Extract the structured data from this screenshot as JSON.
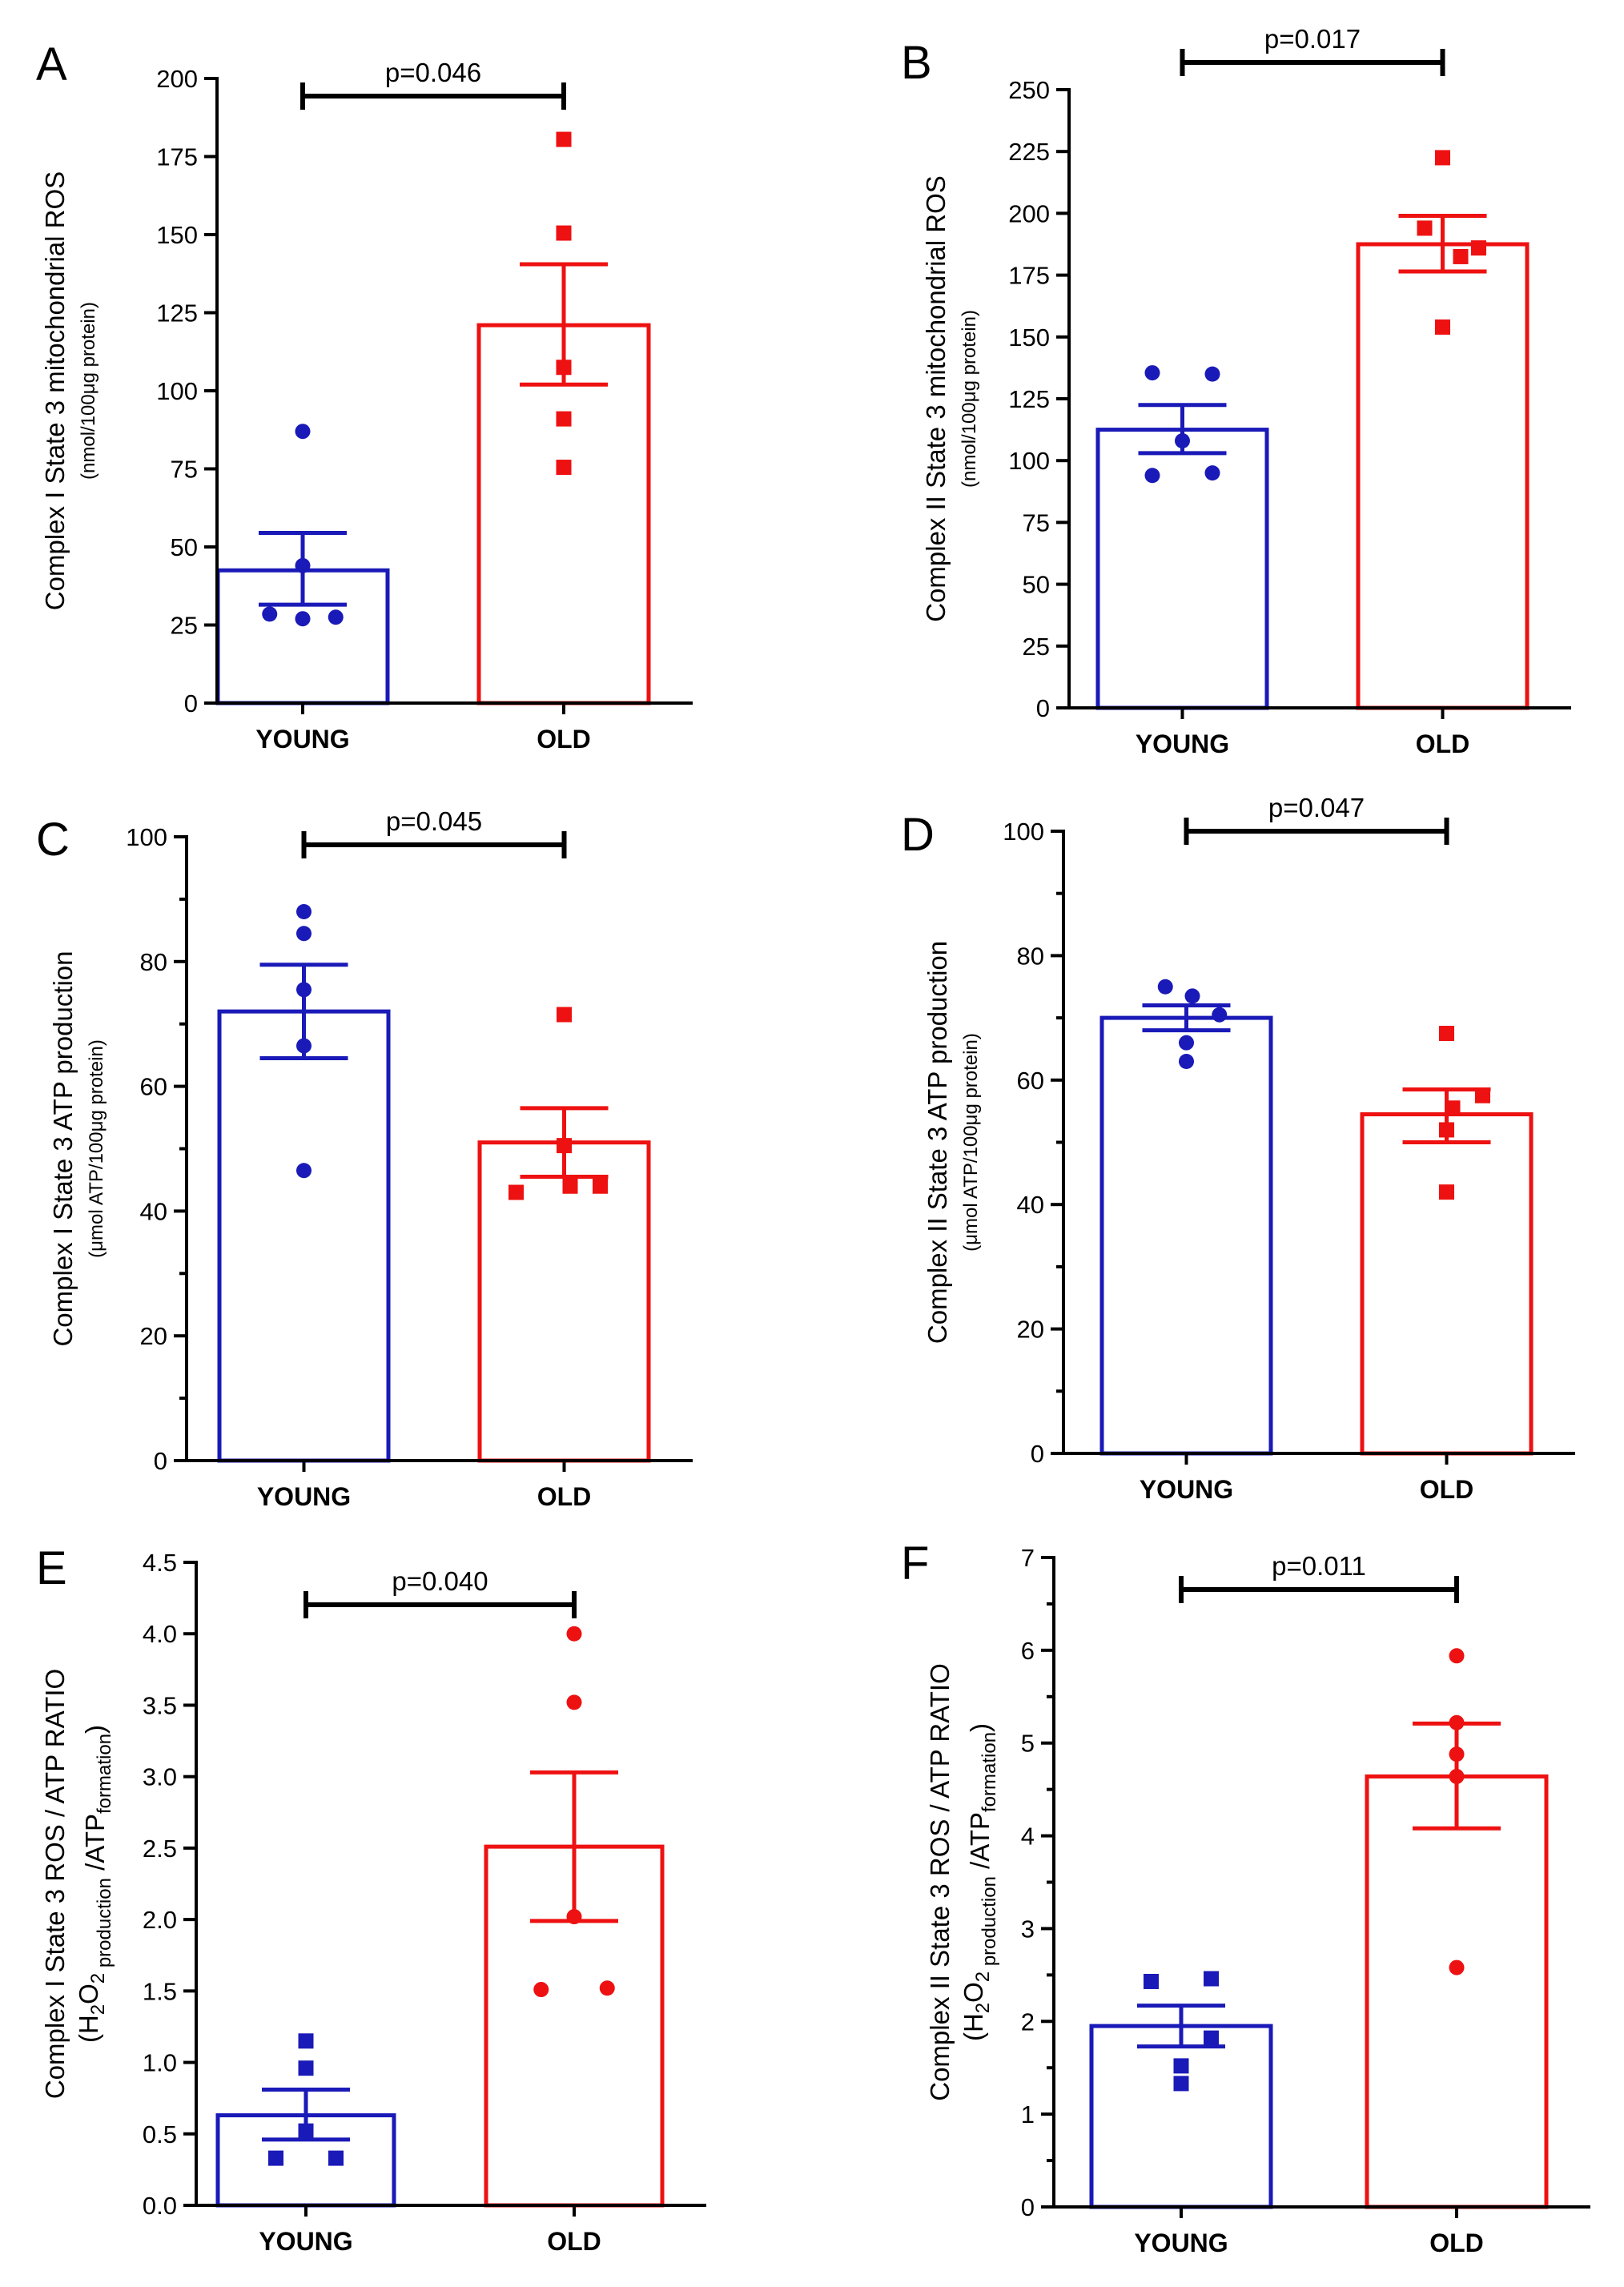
{
  "colors": {
    "young": "#1a1ab8",
    "old": "#ee1111",
    "axis": "#000000"
  },
  "chart_data": [
    {
      "panel": "A",
      "type": "bar",
      "categories": [
        "YOUNG",
        "OLD"
      ],
      "ylabel_main": "Complex I State 3 mitochondrial ROS",
      "ylabel_sub": "(nmol/100μg protein)",
      "ylim": [
        0,
        200
      ],
      "ticks": [
        0,
        25,
        50,
        75,
        100,
        125,
        150,
        175,
        200
      ],
      "minor_ticks": 0,
      "tick_decimals": 0,
      "pvalue": "p=0.046",
      "groups": [
        {
          "name": "YOUNG",
          "mean": 42.5,
          "sem_low": 31.5,
          "sem_high": 54.5,
          "marker": "circle",
          "points": [
            87,
            44,
            27,
            28.5,
            27.5
          ]
        },
        {
          "name": "OLD",
          "mean": 121,
          "sem_low": 102,
          "sem_high": 140.5,
          "marker": "square",
          "points": [
            180.5,
            150.5,
            107.5,
            91,
            75.5
          ]
        }
      ]
    },
    {
      "panel": "B",
      "type": "bar",
      "categories": [
        "YOUNG",
        "OLD"
      ],
      "ylabel_main": "Complex II State 3 mitochondrial ROS",
      "ylabel_sub": "(nmol/100μg protein)",
      "ylim": [
        0,
        250
      ],
      "ticks": [
        0,
        25,
        50,
        75,
        100,
        125,
        150,
        175,
        200,
        225,
        250
      ],
      "minor_ticks": 0,
      "tick_decimals": 0,
      "pvalue": "p=0.017",
      "groups": [
        {
          "name": "YOUNG",
          "mean": 112.5,
          "sem_low": 103,
          "sem_high": 122.5,
          "marker": "circle",
          "points": [
            135.5,
            135,
            108,
            94,
            95
          ]
        },
        {
          "name": "OLD",
          "mean": 187.5,
          "sem_low": 176.5,
          "sem_high": 199,
          "marker": "square",
          "points": [
            222.5,
            194,
            182.5,
            186,
            154
          ]
        }
      ]
    },
    {
      "panel": "C",
      "type": "bar",
      "categories": [
        "YOUNG",
        "OLD"
      ],
      "ylabel_main": "Complex I State 3 ATP production",
      "ylabel_sub": "(μmol ATP/100μg protein)",
      "ylim": [
        0,
        100
      ],
      "ticks": [
        0,
        20,
        40,
        60,
        80,
        100
      ],
      "minor_ticks": 1,
      "tick_decimals": 0,
      "pvalue": "p=0.045",
      "groups": [
        {
          "name": "YOUNG",
          "mean": 72,
          "sem_low": 64.5,
          "sem_high": 79.5,
          "marker": "circle",
          "points": [
            88,
            84.5,
            75.5,
            66.5,
            46.5
          ]
        },
        {
          "name": "OLD",
          "mean": 51,
          "sem_low": 45.5,
          "sem_high": 56.5,
          "marker": "square",
          "points": [
            71.5,
            50.5,
            43,
            44,
            44
          ]
        }
      ]
    },
    {
      "panel": "D",
      "type": "bar",
      "categories": [
        "YOUNG",
        "OLD"
      ],
      "ylabel_main": "Complex II State 3  ATP production",
      "ylabel_sub": "(μmol ATP/100μg protein)",
      "ylim": [
        0,
        100
      ],
      "ticks": [
        0,
        20,
        40,
        60,
        80,
        100
      ],
      "minor_ticks": 1,
      "tick_decimals": 0,
      "pvalue": "p=0.047",
      "groups": [
        {
          "name": "YOUNG",
          "mean": 70,
          "sem_low": 68,
          "sem_high": 72,
          "marker": "circle",
          "points": [
            75,
            73.5,
            70.5,
            66,
            63
          ]
        },
        {
          "name": "OLD",
          "mean": 54.5,
          "sem_low": 50,
          "sem_high": 58.5,
          "marker": "square",
          "points": [
            67.5,
            57.5,
            55.5,
            52,
            42
          ]
        }
      ]
    },
    {
      "panel": "E",
      "type": "bar",
      "categories": [
        "YOUNG",
        "OLD"
      ],
      "ylabel_main": "Complex I State 3 ROS / ATP RATIO",
      "ylabel_sub_parts": [
        "(H",
        "2",
        "O",
        "2",
        " production",
        " /ATP",
        "formation",
        ")"
      ],
      "ylim": [
        0,
        4.5
      ],
      "ticks": [
        0,
        0.5,
        1,
        1.5,
        2,
        2.5,
        3,
        3.5,
        4,
        4.5
      ],
      "minor_ticks": 0,
      "tick_decimals": 1,
      "pvalue": "p=0.040",
      "groups": [
        {
          "name": "YOUNG",
          "mean": 0.63,
          "sem_low": 0.46,
          "sem_high": 0.81,
          "marker": "square",
          "points": [
            1.15,
            0.96,
            0.52,
            0.33,
            0.33
          ]
        },
        {
          "name": "OLD",
          "mean": 2.51,
          "sem_low": 1.99,
          "sem_high": 3.03,
          "marker": "circle",
          "points": [
            4.0,
            3.52,
            2.02,
            1.51,
            1.52
          ]
        }
      ]
    },
    {
      "panel": "F",
      "type": "bar",
      "categories": [
        "YOUNG",
        "OLD"
      ],
      "ylabel_main": "Complex II State 3 ROS / ATP RATIO",
      "ylabel_sub_parts": [
        "(H",
        "2",
        "O",
        "2",
        " production",
        " /ATP",
        "formation",
        ")"
      ],
      "ylim": [
        0,
        7
      ],
      "ticks": [
        0,
        1,
        2,
        3,
        4,
        5,
        6,
        7
      ],
      "minor_ticks": 1,
      "tick_decimals": 0,
      "pvalue": "p=0.011",
      "groups": [
        {
          "name": "YOUNG",
          "mean": 1.95,
          "sem_low": 1.73,
          "sem_high": 2.17,
          "marker": "square",
          "points": [
            2.43,
            2.46,
            1.82,
            1.52,
            1.33
          ]
        },
        {
          "name": "OLD",
          "mean": 4.64,
          "sem_low": 4.08,
          "sem_high": 5.21,
          "marker": "circle",
          "points": [
            5.94,
            5.22,
            4.88,
            4.64,
            2.58
          ]
        }
      ]
    }
  ]
}
